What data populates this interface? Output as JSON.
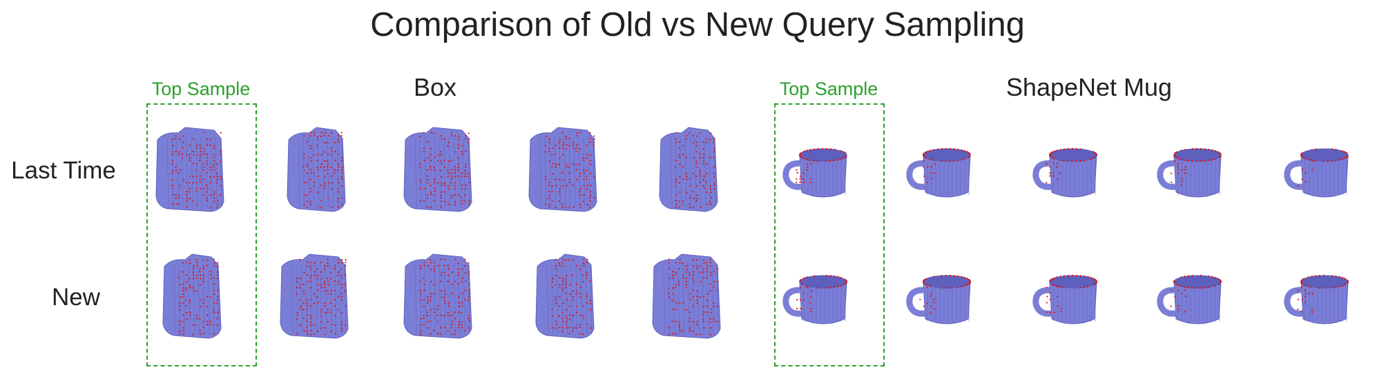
{
  "title": "Comparison of Old vs New Query Sampling",
  "top_sample_label": "Top Sample",
  "groups": [
    {
      "label": "Box",
      "object": "box"
    },
    {
      "label": "ShapeNet Mug",
      "object": "mug"
    }
  ],
  "rows": [
    {
      "label": "Last Time"
    },
    {
      "label": "New"
    }
  ],
  "colors": {
    "mesh": "#7b7ed6",
    "mesh_dark": "#5d60bd",
    "query_points": "#dd1111",
    "highlight": "#2ca02c",
    "text": "#222222"
  },
  "samples_per_group": 5
}
